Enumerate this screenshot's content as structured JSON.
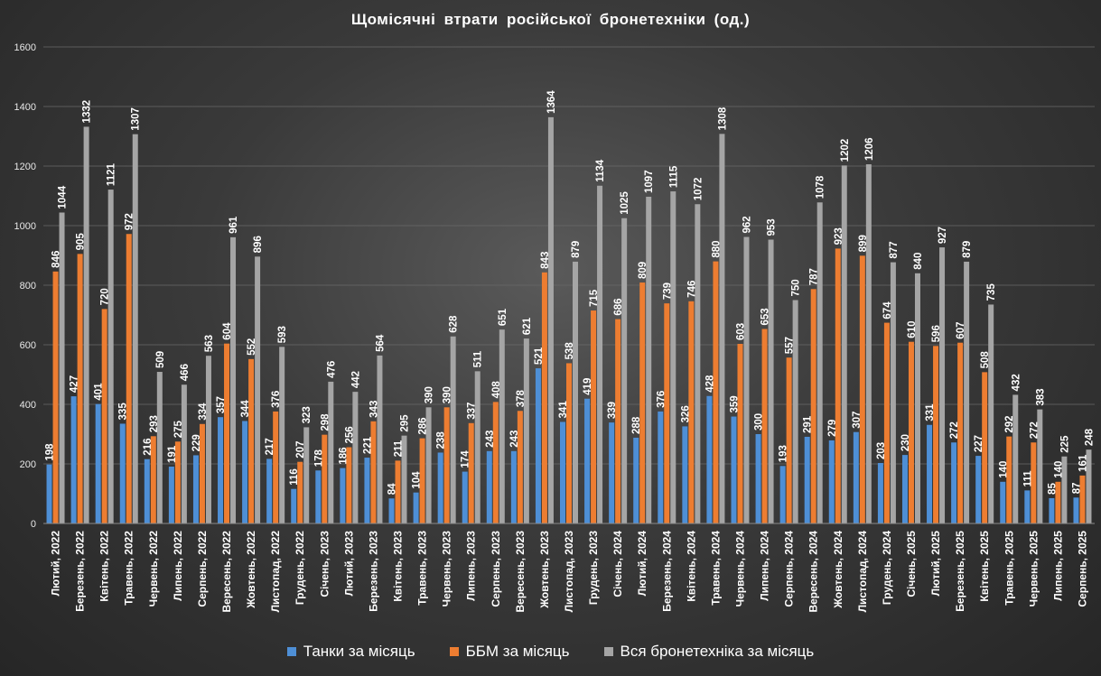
{
  "chart_data": {
    "type": "bar",
    "title": "Щомісячні втрати російської бронетехніки (од.)",
    "ylim": [
      0,
      1600
    ],
    "yticks": [
      0,
      200,
      400,
      600,
      800,
      1000,
      1200,
      1400,
      1600
    ],
    "grid": true,
    "legend_position": "bottom",
    "categories": [
      "Лютий, 2022",
      "Березень, 2022",
      "Квітень, 2022",
      "Травень, 2022",
      "Червень, 2022",
      "Липень, 2022",
      "Серпень, 2022",
      "Вересень, 2022",
      "Жовтень, 2022",
      "Листопад, 2022",
      "Грудень, 2022",
      "Січень, 2023",
      "Лютий, 2023",
      "Березень, 2023",
      "Квітень, 2023",
      "Травень, 2023",
      "Червень, 2023",
      "Липень, 2023",
      "Серпень, 2023",
      "Вересень, 2023",
      "Жовтень, 2023",
      "Листопад, 2023",
      "Грудень, 2023",
      "Січень, 2024",
      "Лютий, 2024",
      "Березень, 2024",
      "Квітень, 2024",
      "Травень, 2024",
      "Червень, 2024",
      "Липень, 2024",
      "Серпень, 2024",
      "Вересень, 2024",
      "Жовтень, 2024",
      "Листопад, 2024",
      "Грудень, 2024",
      "Січень, 2025",
      "Лютий, 2025",
      "Березень, 2025",
      "Квітень, 2025",
      "Травень, 2025",
      "Червень, 2025",
      "Липень, 2025",
      "Серпень, 2025"
    ],
    "series": [
      {
        "name": "Танки за місяць",
        "color": "#4e8fd6",
        "values": [
          198,
          427,
          401,
          335,
          216,
          191,
          229,
          357,
          344,
          217,
          116,
          178,
          186,
          221,
          84,
          104,
          238,
          174,
          243,
          243,
          521,
          341,
          419,
          339,
          288,
          376,
          326,
          428,
          359,
          300,
          193,
          291,
          279,
          307,
          203,
          230,
          331,
          272,
          227,
          140,
          111,
          85,
          87
        ]
      },
      {
        "name": "ББМ за місяць",
        "color": "#ed7d31",
        "values": [
          846,
          905,
          720,
          972,
          293,
          275,
          334,
          604,
          552,
          376,
          207,
          298,
          256,
          343,
          211,
          286,
          390,
          337,
          408,
          378,
          843,
          538,
          715,
          686,
          809,
          739,
          746,
          880,
          603,
          653,
          557,
          787,
          923,
          899,
          674,
          610,
          596,
          607,
          508,
          292,
          272,
          140,
          161
        ]
      },
      {
        "name": "Вся бронетехніка за місяць",
        "color": "#a5a5a5",
        "values": [
          1044,
          1332,
          1121,
          1307,
          509,
          466,
          563,
          961,
          896,
          593,
          323,
          476,
          442,
          564,
          295,
          390,
          628,
          511,
          651,
          621,
          1364,
          879,
          1134,
          1025,
          1097,
          1115,
          1072,
          1308,
          962,
          953,
          750,
          1078,
          1202,
          1206,
          877,
          840,
          927,
          879,
          735,
          432,
          383,
          225,
          248
        ]
      }
    ]
  }
}
